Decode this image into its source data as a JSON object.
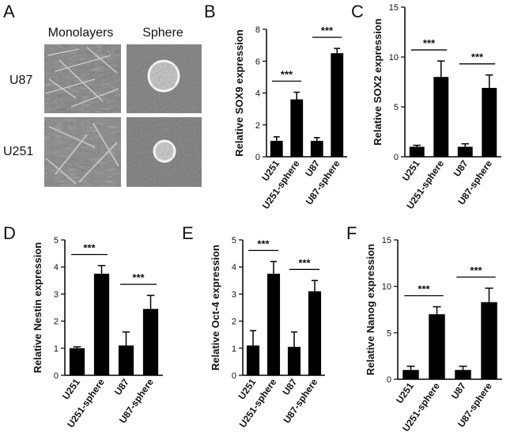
{
  "panel_a": {
    "letter": "A",
    "col_headers": [
      "Monolayers",
      "Sphere"
    ],
    "row_labels": [
      "U87",
      "U251"
    ]
  },
  "chart_data": [
    {
      "panel": "B",
      "type": "bar",
      "ylabel": "Relative SOX9 expression",
      "categories": [
        "U251",
        "U251-sphere",
        "U87",
        "U87-sphere"
      ],
      "values": [
        1.0,
        3.6,
        1.0,
        6.5
      ],
      "errors": [
        0.25,
        0.45,
        0.2,
        0.3
      ],
      "ylim": [
        0,
        8
      ],
      "yticks": [
        0,
        2,
        4,
        6,
        8
      ],
      "significance": [
        {
          "from": 0,
          "to": 1,
          "label": "***"
        },
        {
          "from": 2,
          "to": 3,
          "label": "***"
        }
      ]
    },
    {
      "panel": "C",
      "type": "bar",
      "ylabel": "Relative SOX2 expression",
      "categories": [
        "U251",
        "U251-sphere",
        "U87",
        "U87-sphere"
      ],
      "values": [
        1.0,
        8.0,
        1.0,
        6.9
      ],
      "errors": [
        0.15,
        1.6,
        0.3,
        1.3
      ],
      "ylim": [
        0,
        15
      ],
      "yticks": [
        0,
        5,
        10,
        15
      ],
      "significance": [
        {
          "from": 0,
          "to": 1,
          "label": "***"
        },
        {
          "from": 2,
          "to": 3,
          "label": "***"
        }
      ]
    },
    {
      "panel": "D",
      "type": "bar",
      "ylabel": "Relative Nestin expression",
      "categories": [
        "U251",
        "U251-sphere",
        "U87",
        "U87-sphere"
      ],
      "values": [
        1.0,
        3.75,
        1.1,
        2.45
      ],
      "errors": [
        0.05,
        0.3,
        0.5,
        0.5
      ],
      "ylim": [
        0,
        5
      ],
      "yticks": [
        0,
        1,
        2,
        3,
        4,
        5
      ],
      "significance": [
        {
          "from": 0,
          "to": 1,
          "label": "***"
        },
        {
          "from": 2,
          "to": 3,
          "label": "***"
        }
      ]
    },
    {
      "panel": "E",
      "type": "bar",
      "ylabel": "Relative Oct-4 expression",
      "categories": [
        "U251",
        "U251-sphere",
        "U87",
        "U87-sphere"
      ],
      "values": [
        1.1,
        3.75,
        1.05,
        3.1
      ],
      "errors": [
        0.55,
        0.45,
        0.55,
        0.4
      ],
      "ylim": [
        0,
        5
      ],
      "yticks": [
        0,
        1,
        2,
        3,
        4,
        5
      ],
      "significance": [
        {
          "from": 0,
          "to": 1,
          "label": "***"
        },
        {
          "from": 2,
          "to": 3,
          "label": "***"
        }
      ]
    },
    {
      "panel": "F",
      "type": "bar",
      "ylabel": "Relative Nanog expression",
      "categories": [
        "U251",
        "U251-sphere",
        "U87",
        "U87-sphere"
      ],
      "values": [
        1.0,
        7.0,
        1.0,
        8.3
      ],
      "errors": [
        0.4,
        0.8,
        0.4,
        1.5
      ],
      "ylim": [
        0,
        15
      ],
      "yticks": [
        0,
        5,
        10,
        15
      ],
      "significance": [
        {
          "from": 0,
          "to": 1,
          "label": "***"
        },
        {
          "from": 2,
          "to": 3,
          "label": "***"
        }
      ]
    }
  ],
  "colors": {
    "bar": "#000000",
    "axis": "#000000",
    "micrograph_background": "#7f7f7f"
  }
}
